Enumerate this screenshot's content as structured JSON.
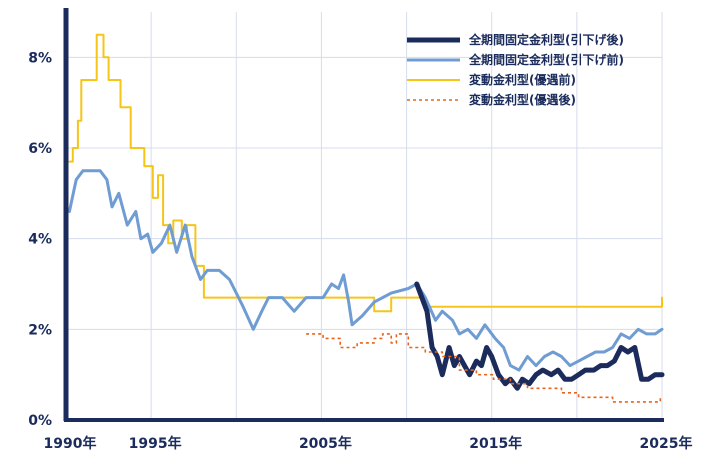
{
  "chart_data": {
    "type": "line",
    "title": "",
    "xlabel": "",
    "ylabel": "",
    "xlim": [
      1990,
      2025
    ],
    "ylim": [
      0,
      9
    ],
    "grid": true,
    "legend_position": "top-right",
    "x_ticks": [
      {
        "value": 1990,
        "label": "1990年"
      },
      {
        "value": 1995,
        "label": "1995年"
      },
      {
        "value": 2005,
        "label": "2005年"
      },
      {
        "value": 2015,
        "label": "2015年"
      },
      {
        "value": 2025,
        "label": "2025年"
      }
    ],
    "y_ticks": [
      {
        "value": 0,
        "label": "0%"
      },
      {
        "value": 2,
        "label": "2%"
      },
      {
        "value": 4,
        "label": "4%"
      },
      {
        "value": 6,
        "label": "6%"
      },
      {
        "value": 8,
        "label": "8%"
      }
    ],
    "x_grid": [
      1995,
      2000,
      2005,
      2010,
      2015,
      2020,
      2025
    ],
    "series": [
      {
        "name": "変動金利型(優遇前)",
        "color": "#f5c518",
        "dash": "solid",
        "width": 2,
        "step": true,
        "points": [
          [
            1990.2,
            5.7
          ],
          [
            1990.4,
            6.0
          ],
          [
            1990.7,
            6.6
          ],
          [
            1990.9,
            7.5
          ],
          [
            1991.8,
            8.5
          ],
          [
            1992.2,
            8.0
          ],
          [
            1992.5,
            7.5
          ],
          [
            1993.2,
            6.9
          ],
          [
            1993.8,
            6.0
          ],
          [
            1994.6,
            5.6
          ],
          [
            1995.1,
            4.9
          ],
          [
            1995.4,
            5.4
          ],
          [
            1995.7,
            4.3
          ],
          [
            1996.0,
            3.9
          ],
          [
            1996.3,
            4.4
          ],
          [
            1996.8,
            4.0
          ],
          [
            1997.1,
            4.3
          ],
          [
            1997.6,
            3.4
          ],
          [
            1998.1,
            2.7
          ],
          [
            2008.1,
            2.4
          ],
          [
            2009.1,
            2.7
          ],
          [
            2011.1,
            2.5
          ],
          [
            2024.8,
            2.5
          ],
          [
            2025.0,
            2.7
          ]
        ]
      },
      {
        "name": "全期間固定金利型(引下げ前)",
        "color": "#6f9cd3",
        "dash": "solid",
        "width": 3,
        "step": false,
        "points": [
          [
            1990.2,
            4.6
          ],
          [
            1990.6,
            5.3
          ],
          [
            1991.0,
            5.5
          ],
          [
            1992.0,
            5.5
          ],
          [
            1992.4,
            5.3
          ],
          [
            1992.7,
            4.7
          ],
          [
            1993.1,
            5.0
          ],
          [
            1993.6,
            4.3
          ],
          [
            1994.1,
            4.6
          ],
          [
            1994.4,
            4.0
          ],
          [
            1994.8,
            4.1
          ],
          [
            1995.1,
            3.7
          ],
          [
            1995.6,
            3.9
          ],
          [
            1996.1,
            4.3
          ],
          [
            1996.5,
            3.7
          ],
          [
            1997.0,
            4.3
          ],
          [
            1997.4,
            3.6
          ],
          [
            1997.9,
            3.1
          ],
          [
            1998.3,
            3.3
          ],
          [
            1999.0,
            3.3
          ],
          [
            1999.6,
            3.1
          ],
          [
            2000.4,
            2.5
          ],
          [
            2001.0,
            2.0
          ],
          [
            2001.5,
            2.4
          ],
          [
            2001.9,
            2.7
          ],
          [
            2002.7,
            2.7
          ],
          [
            2003.4,
            2.4
          ],
          [
            2004.1,
            2.7
          ],
          [
            2005.1,
            2.7
          ],
          [
            2005.6,
            3.0
          ],
          [
            2006.0,
            2.9
          ],
          [
            2006.3,
            3.2
          ],
          [
            2006.6,
            2.6
          ],
          [
            2006.8,
            2.1
          ],
          [
            2007.4,
            2.3
          ],
          [
            2008.1,
            2.6
          ],
          [
            2009.1,
            2.8
          ],
          [
            2010.1,
            2.9
          ],
          [
            2010.6,
            3.0
          ],
          [
            2011.1,
            2.7
          ],
          [
            2011.7,
            2.2
          ],
          [
            2012.1,
            2.4
          ],
          [
            2012.7,
            2.2
          ],
          [
            2013.1,
            1.9
          ],
          [
            2013.6,
            2.0
          ],
          [
            2014.1,
            1.8
          ],
          [
            2014.6,
            2.1
          ],
          [
            2015.2,
            1.8
          ],
          [
            2015.7,
            1.6
          ],
          [
            2016.1,
            1.2
          ],
          [
            2016.6,
            1.1
          ],
          [
            2017.1,
            1.4
          ],
          [
            2017.6,
            1.2
          ],
          [
            2018.1,
            1.4
          ],
          [
            2018.6,
            1.5
          ],
          [
            2019.1,
            1.4
          ],
          [
            2019.6,
            1.2
          ],
          [
            2020.1,
            1.3
          ],
          [
            2020.6,
            1.4
          ],
          [
            2021.1,
            1.5
          ],
          [
            2021.6,
            1.5
          ],
          [
            2022.1,
            1.6
          ],
          [
            2022.6,
            1.9
          ],
          [
            2023.1,
            1.8
          ],
          [
            2023.6,
            2.0
          ],
          [
            2024.1,
            1.9
          ],
          [
            2024.6,
            1.9
          ],
          [
            2025.0,
            2.0
          ]
        ]
      },
      {
        "name": "全期間固定金利型(引下げ後)",
        "color": "#1a2b5c",
        "dash": "solid",
        "width": 5,
        "step": false,
        "points": [
          [
            2010.6,
            3.0
          ],
          [
            2010.9,
            2.7
          ],
          [
            2011.2,
            2.4
          ],
          [
            2011.5,
            1.6
          ],
          [
            2011.8,
            1.4
          ],
          [
            2012.1,
            1.0
          ],
          [
            2012.5,
            1.6
          ],
          [
            2012.8,
            1.2
          ],
          [
            2013.1,
            1.4
          ],
          [
            2013.4,
            1.2
          ],
          [
            2013.7,
            1.0
          ],
          [
            2014.1,
            1.3
          ],
          [
            2014.4,
            1.2
          ],
          [
            2014.7,
            1.6
          ],
          [
            2015.0,
            1.4
          ],
          [
            2015.4,
            1.0
          ],
          [
            2015.8,
            0.8
          ],
          [
            2016.1,
            0.9
          ],
          [
            2016.5,
            0.7
          ],
          [
            2016.8,
            0.9
          ],
          [
            2017.2,
            0.8
          ],
          [
            2017.6,
            1.0
          ],
          [
            2018.0,
            1.1
          ],
          [
            2018.5,
            1.0
          ],
          [
            2018.9,
            1.1
          ],
          [
            2019.3,
            0.9
          ],
          [
            2019.7,
            0.9
          ],
          [
            2020.1,
            1.0
          ],
          [
            2020.5,
            1.1
          ],
          [
            2021.0,
            1.1
          ],
          [
            2021.4,
            1.2
          ],
          [
            2021.8,
            1.2
          ],
          [
            2022.2,
            1.3
          ],
          [
            2022.6,
            1.6
          ],
          [
            2023.0,
            1.5
          ],
          [
            2023.4,
            1.6
          ],
          [
            2023.8,
            0.9
          ],
          [
            2024.2,
            0.9
          ],
          [
            2024.6,
            1.0
          ],
          [
            2025.0,
            1.0
          ]
        ]
      },
      {
        "name": "変動金利型(優遇後)",
        "color": "#e8641c",
        "dash": "dashed",
        "width": 1.6,
        "step": true,
        "points": [
          [
            2004.1,
            1.9
          ],
          [
            2005.1,
            1.8
          ],
          [
            2006.1,
            1.6
          ],
          [
            2007.1,
            1.7
          ],
          [
            2008.1,
            1.8
          ],
          [
            2008.6,
            1.9
          ],
          [
            2009.1,
            1.7
          ],
          [
            2009.4,
            1.9
          ],
          [
            2010.1,
            1.6
          ],
          [
            2011.1,
            1.5
          ],
          [
            2012.1,
            1.4
          ],
          [
            2013.1,
            1.1
          ],
          [
            2014.1,
            1.0
          ],
          [
            2015.1,
            0.9
          ],
          [
            2016.1,
            0.8
          ],
          [
            2017.1,
            0.7
          ],
          [
            2018.1,
            0.7
          ],
          [
            2019.1,
            0.6
          ],
          [
            2020.1,
            0.5
          ],
          [
            2021.1,
            0.5
          ],
          [
            2022.1,
            0.4
          ],
          [
            2023.1,
            0.4
          ],
          [
            2024.1,
            0.4
          ],
          [
            2024.9,
            0.5
          ]
        ]
      }
    ],
    "legend_order": [
      2,
      1,
      0,
      3
    ]
  }
}
